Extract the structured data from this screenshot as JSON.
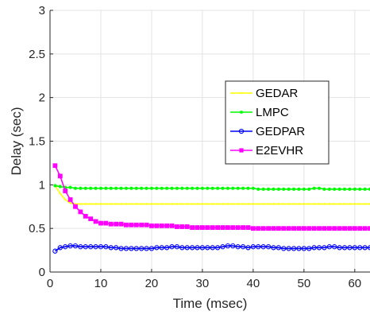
{
  "chart_data": {
    "type": "line",
    "title": "",
    "xlabel": "Time (msec)",
    "ylabel": "Delay (sec)",
    "xlim": [
      0,
      63
    ],
    "ylim": [
      0,
      3
    ],
    "xticks": [
      0,
      10,
      20,
      30,
      40,
      50,
      60
    ],
    "yticks": [
      0,
      0.5,
      1,
      1.5,
      2,
      2.5,
      3
    ],
    "xtick_labels": [
      "0",
      "10",
      "20",
      "30",
      "40",
      "50",
      "60"
    ],
    "ytick_labels": [
      "0",
      "0.5",
      "1",
      "1.5",
      "2",
      "2.5",
      "3"
    ],
    "grid": true,
    "legend_position": "upper-right inside",
    "x": [
      1,
      2,
      3,
      4,
      5,
      6,
      7,
      8,
      9,
      10,
      11,
      12,
      13,
      14,
      15,
      16,
      17,
      18,
      19,
      20,
      21,
      22,
      23,
      24,
      25,
      26,
      27,
      28,
      29,
      30,
      31,
      32,
      33,
      34,
      35,
      36,
      37,
      38,
      39,
      40,
      41,
      42,
      43,
      44,
      45,
      46,
      47,
      48,
      49,
      50,
      51,
      52,
      53,
      54,
      55,
      56,
      57,
      58,
      59,
      60,
      61,
      62,
      63
    ],
    "series": [
      {
        "name": "GEDAR",
        "color": "#ffff00",
        "marker": "dot",
        "values": [
          0.99,
          0.9,
          0.83,
          0.79,
          0.78,
          0.78,
          0.78,
          0.78,
          0.78,
          0.78,
          0.78,
          0.78,
          0.78,
          0.78,
          0.78,
          0.78,
          0.78,
          0.78,
          0.78,
          0.78,
          0.78,
          0.78,
          0.78,
          0.78,
          0.78,
          0.78,
          0.78,
          0.78,
          0.78,
          0.78,
          0.78,
          0.78,
          0.78,
          0.78,
          0.78,
          0.78,
          0.78,
          0.78,
          0.78,
          0.78,
          0.78,
          0.78,
          0.78,
          0.78,
          0.78,
          0.78,
          0.78,
          0.78,
          0.78,
          0.78,
          0.78,
          0.78,
          0.78,
          0.78,
          0.78,
          0.78,
          0.78,
          0.78,
          0.78,
          0.78,
          0.78,
          0.78,
          0.78
        ]
      },
      {
        "name": "LMPC",
        "color": "#00ff00",
        "marker": "star",
        "values": [
          0.99,
          0.98,
          0.97,
          0.97,
          0.96,
          0.96,
          0.96,
          0.96,
          0.96,
          0.96,
          0.96,
          0.96,
          0.96,
          0.96,
          0.96,
          0.96,
          0.96,
          0.96,
          0.96,
          0.96,
          0.96,
          0.96,
          0.96,
          0.96,
          0.96,
          0.96,
          0.96,
          0.96,
          0.96,
          0.96,
          0.96,
          0.96,
          0.96,
          0.96,
          0.96,
          0.96,
          0.96,
          0.96,
          0.96,
          0.96,
          0.95,
          0.95,
          0.95,
          0.95,
          0.95,
          0.95,
          0.95,
          0.95,
          0.95,
          0.95,
          0.95,
          0.96,
          0.96,
          0.95,
          0.95,
          0.95,
          0.95,
          0.95,
          0.95,
          0.95,
          0.95,
          0.95,
          0.95
        ]
      },
      {
        "name": "GEDPAR",
        "color": "#0000ff",
        "marker": "circle",
        "values": [
          0.24,
          0.28,
          0.29,
          0.3,
          0.3,
          0.29,
          0.29,
          0.29,
          0.29,
          0.29,
          0.29,
          0.28,
          0.28,
          0.27,
          0.27,
          0.27,
          0.27,
          0.27,
          0.27,
          0.27,
          0.28,
          0.28,
          0.28,
          0.29,
          0.29,
          0.28,
          0.28,
          0.28,
          0.28,
          0.28,
          0.28,
          0.28,
          0.28,
          0.29,
          0.3,
          0.3,
          0.29,
          0.29,
          0.28,
          0.29,
          0.29,
          0.29,
          0.29,
          0.28,
          0.28,
          0.27,
          0.27,
          0.27,
          0.27,
          0.27,
          0.27,
          0.28,
          0.28,
          0.28,
          0.29,
          0.29,
          0.28,
          0.28,
          0.28,
          0.28,
          0.28,
          0.28,
          0.28
        ]
      },
      {
        "name": "E2EVHR",
        "color": "#ff00ff",
        "marker": "square",
        "values": [
          1.22,
          1.1,
          0.93,
          0.83,
          0.75,
          0.69,
          0.64,
          0.61,
          0.58,
          0.56,
          0.56,
          0.55,
          0.55,
          0.55,
          0.54,
          0.54,
          0.54,
          0.54,
          0.54,
          0.53,
          0.53,
          0.53,
          0.53,
          0.53,
          0.52,
          0.52,
          0.52,
          0.51,
          0.51,
          0.51,
          0.51,
          0.51,
          0.51,
          0.51,
          0.51,
          0.51,
          0.51,
          0.51,
          0.51,
          0.5,
          0.5,
          0.5,
          0.5,
          0.5,
          0.5,
          0.5,
          0.5,
          0.5,
          0.5,
          0.5,
          0.5,
          0.5,
          0.5,
          0.5,
          0.5,
          0.5,
          0.5,
          0.5,
          0.5,
          0.5,
          0.5,
          0.5,
          0.5
        ]
      }
    ]
  }
}
